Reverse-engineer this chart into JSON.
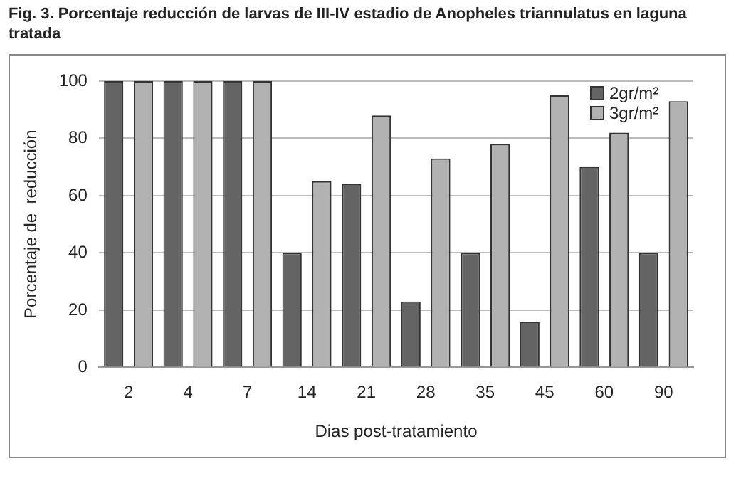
{
  "chart_data": {
    "type": "bar",
    "title": "Fig. 3. Porcentaje reducción de larvas de III-IV estadio de Anopheles triannulatus en laguna tratada",
    "xlabel": "Dias post-tratamiento",
    "ylabel": "Porcentaje de  reducción",
    "categories": [
      "2",
      "4",
      "7",
      "14",
      "21",
      "28",
      "35",
      "45",
      "60",
      "90"
    ],
    "series": [
      {
        "name": "2gr/m²",
        "color": "#646464",
        "values": [
          100,
          100,
          100,
          40,
          64,
          23,
          40,
          16,
          70,
          40
        ]
      },
      {
        "name": "3gr/m²",
        "color": "#b2b2b2",
        "values": [
          100,
          100,
          100,
          65,
          88,
          73,
          78,
          95,
          82,
          93
        ]
      }
    ],
    "ylim": [
      0,
      100
    ],
    "yticks": [
      0,
      20,
      40,
      60,
      80,
      100
    ],
    "grid": "y",
    "legend": "top right"
  }
}
